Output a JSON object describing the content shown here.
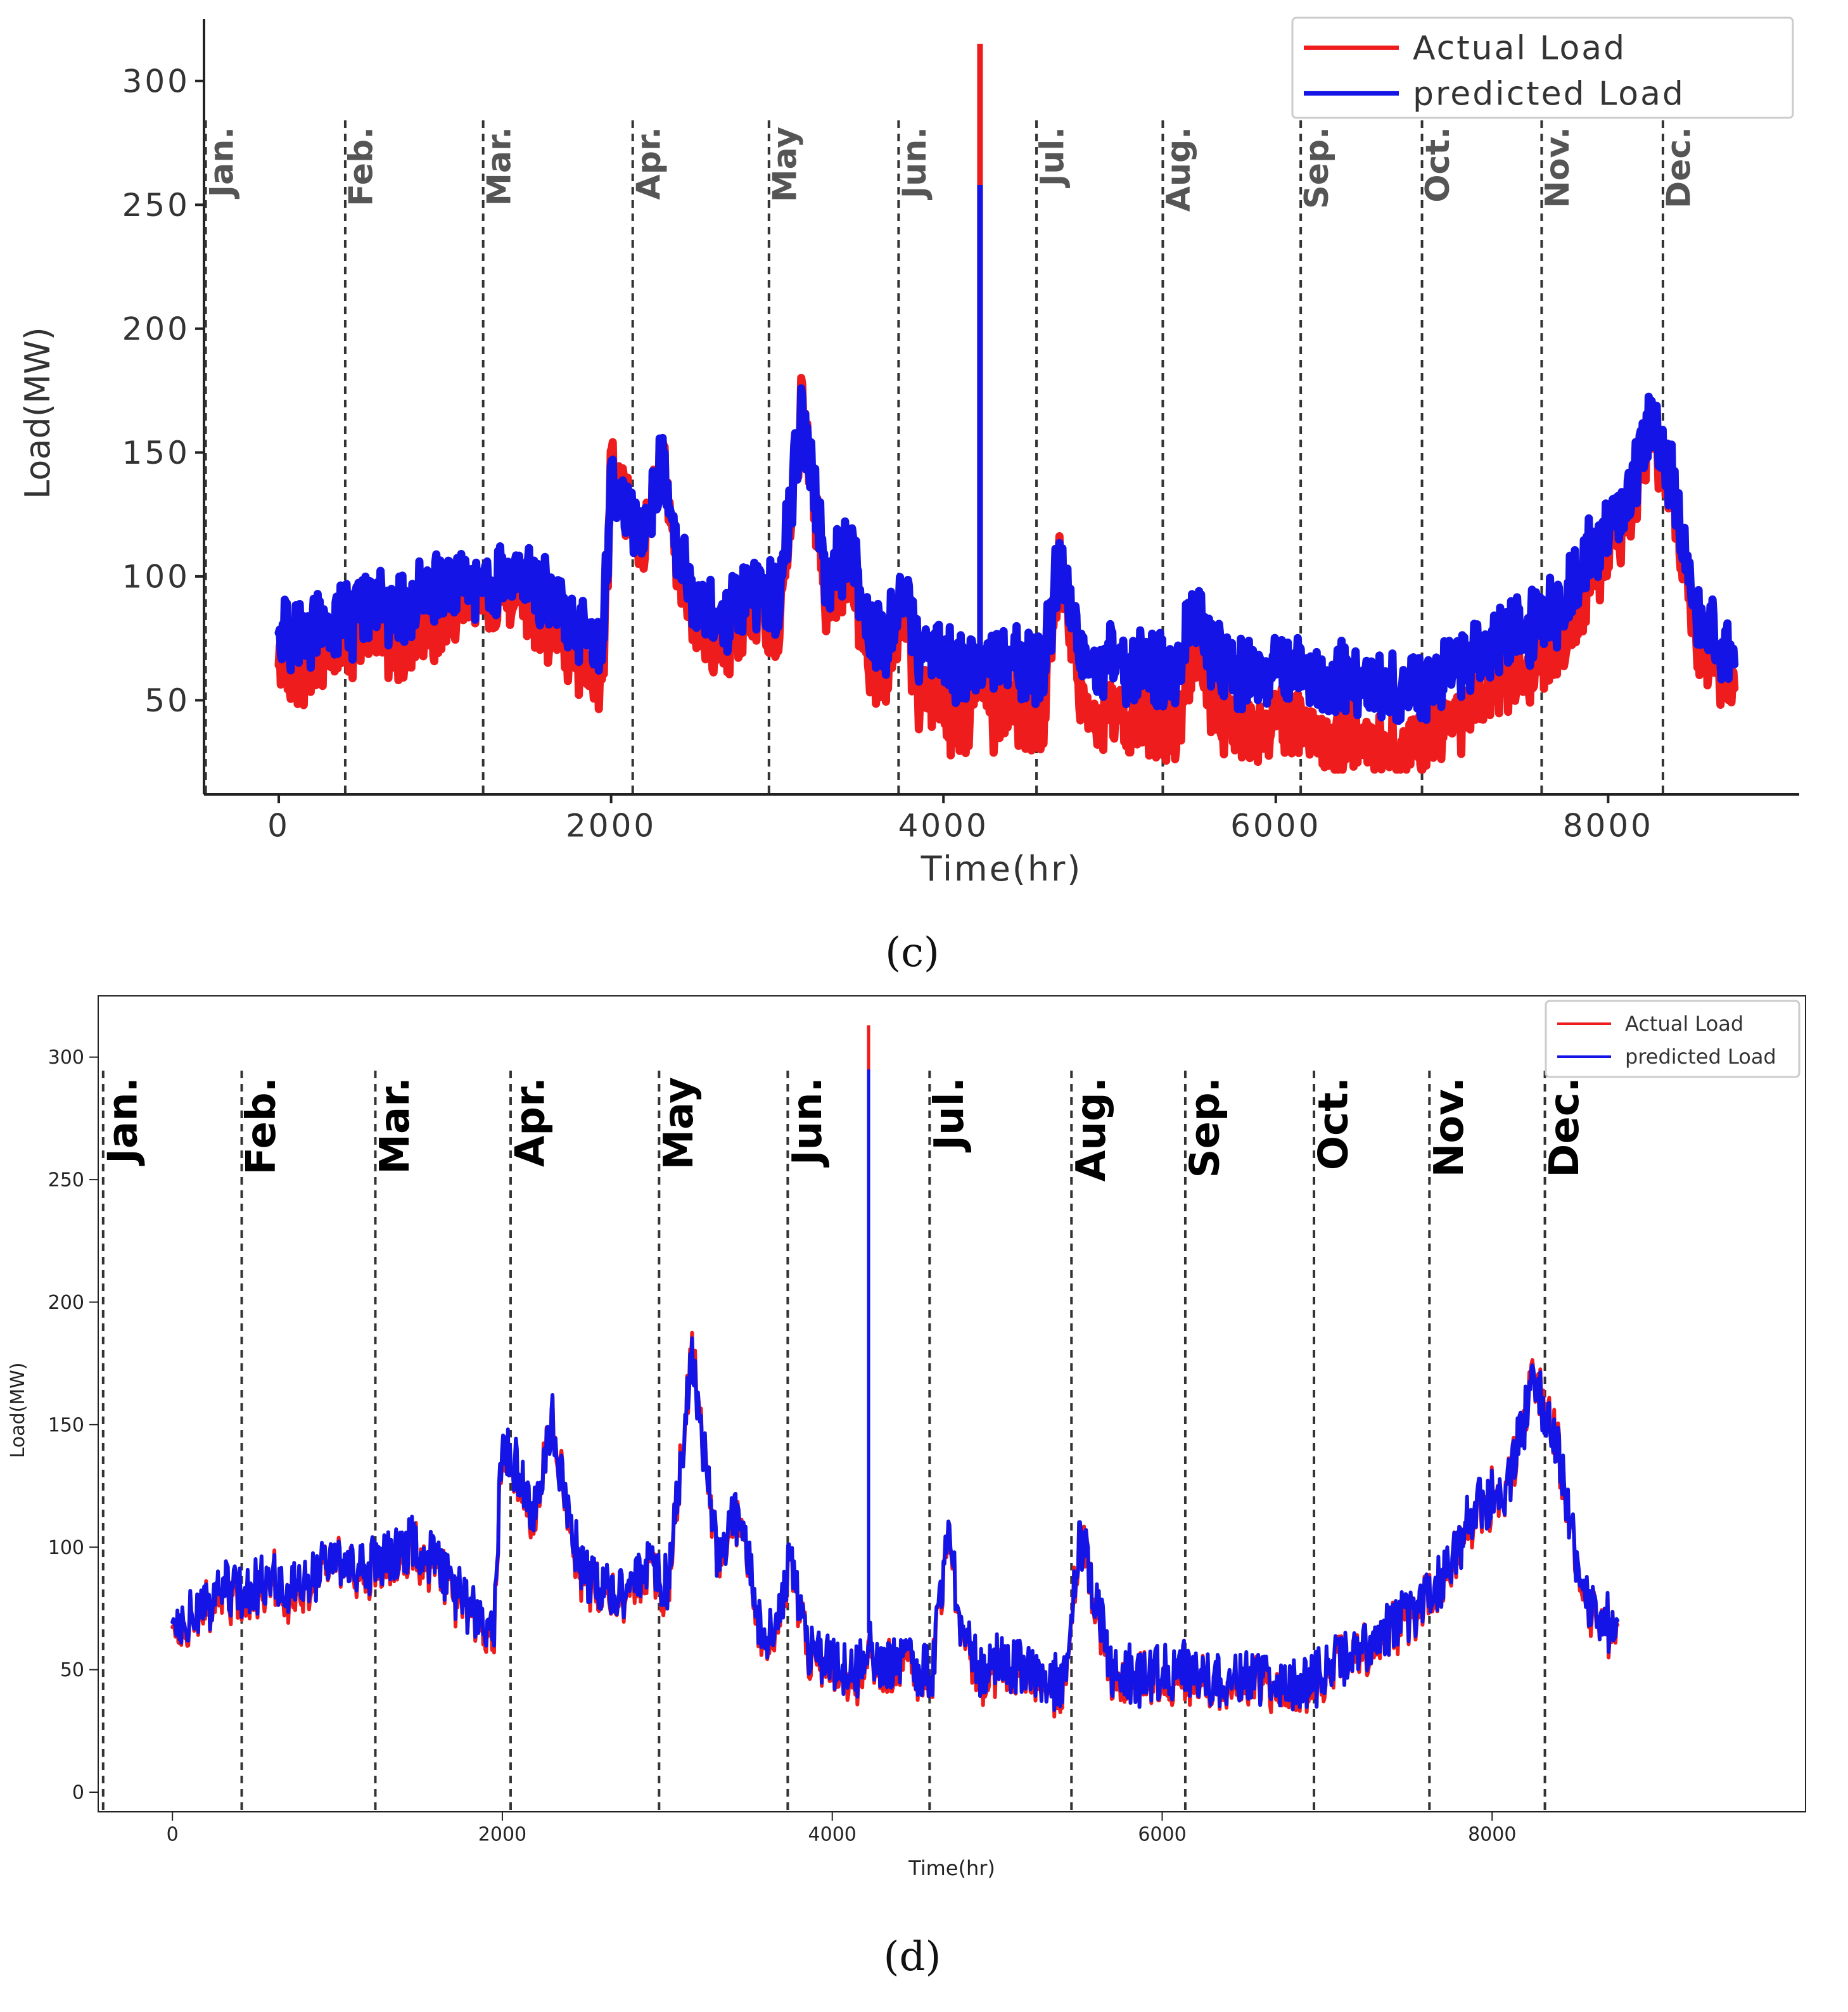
{
  "panels": [
    {
      "caption": "(c)",
      "chart_data": {
        "type": "line",
        "xlabel": "Time(hr)",
        "ylabel": "Load(MW)",
        "xlim": [
          -450,
          9150
        ],
        "ylim": [
          12,
          325
        ],
        "xticks": [
          0,
          2000,
          4000,
          6000,
          8000
        ],
        "yticks": [
          50,
          100,
          150,
          200,
          250,
          300
        ],
        "legend": {
          "position": "top-right",
          "entries": [
            "Actual Load",
            "predicted Load"
          ]
        },
        "months": [
          {
            "label": "Jan.",
            "x": -440
          },
          {
            "label": "Feb.",
            "x": 400
          },
          {
            "label": "Mar.",
            "x": 1230
          },
          {
            "label": "Apr.",
            "x": 2130
          },
          {
            "label": "May",
            "x": 2950
          },
          {
            "label": "Jun.",
            "x": 3730
          },
          {
            "label": "Jul.",
            "x": 4560
          },
          {
            "label": "Aug.",
            "x": 5320
          },
          {
            "label": "Sep.",
            "x": 6150
          },
          {
            "label": "Oct.",
            "x": 6880
          },
          {
            "label": "Nov.",
            "x": 7600
          },
          {
            "label": "Dec.",
            "x": 8330
          }
        ],
        "series": [
          {
            "name": "Actual Load",
            "color": "#ee1c1c",
            "x": [
              0,
              150,
              300,
              450,
              600,
              700,
              800,
              950,
              1100,
              1250,
              1450,
              1600,
              1800,
              1950,
              2000,
              2100,
              2200,
              2300,
              2400,
              2500,
              2700,
              2900,
              3000,
              3150,
              3300,
              3450,
              3550,
              3650,
              3750,
              3850,
              4000,
              4150,
              4220,
              4300,
              4400,
              4500,
              4600,
              4700,
              4800,
              4900,
              5000,
              5200,
              5400,
              5500,
              5700,
              5900,
              6100,
              6300,
              6600,
              6850,
              7000,
              7150,
              7300,
              7500,
              7700,
              7900,
              8100,
              8250,
              8400,
              8550,
              8750
            ],
            "values": [
              65,
              60,
              75,
              70,
              80,
              70,
              75,
              80,
              90,
              88,
              95,
              80,
              65,
              60,
              145,
              130,
              110,
              150,
              105,
              80,
              70,
              85,
              75,
              170,
              90,
              100,
              65,
              60,
              85,
              55,
              45,
              38,
              315,
              42,
              48,
              45,
              40,
              110,
              60,
              40,
              45,
              42,
              38,
              70,
              40,
              38,
              40,
              35,
              35,
              32,
              40,
              45,
              55,
              60,
              70,
              100,
              120,
              160,
              130,
              70,
              60
            ]
          },
          {
            "name": "predicted Load",
            "color": "#1414e6",
            "x": [
              0,
              150,
              300,
              450,
              600,
              700,
              800,
              950,
              1100,
              1250,
              1450,
              1600,
              1800,
              1950,
              2000,
              2100,
              2200,
              2300,
              2400,
              2500,
              2700,
              2900,
              3000,
              3150,
              3300,
              3450,
              3550,
              3650,
              3750,
              3850,
              4000,
              4150,
              4220,
              4300,
              4400,
              4500,
              4600,
              4700,
              4800,
              4900,
              5000,
              5200,
              5400,
              5500,
              5700,
              5900,
              6100,
              6300,
              6600,
              6850,
              7000,
              7150,
              7300,
              7500,
              7700,
              7900,
              8100,
              8250,
              8400,
              8550,
              8750
            ],
            "values": [
              78,
              75,
              85,
              82,
              90,
              85,
              88,
              95,
              98,
              95,
              102,
              92,
              78,
              72,
              140,
              128,
              115,
              145,
              112,
              90,
              82,
              95,
              88,
              165,
              100,
              110,
              78,
              72,
              95,
              70,
              65,
              60,
              258,
              65,
              68,
              66,
              60,
              108,
              72,
              62,
              66,
              64,
              60,
              85,
              62,
              60,
              62,
              60,
              58,
              55,
              62,
              66,
              72,
              78,
              85,
              110,
              125,
              165,
              135,
              80,
              70
            ]
          }
        ]
      }
    },
    {
      "caption": "(d)",
      "chart_data": {
        "type": "line",
        "xlabel": "Time(hr)",
        "ylabel": "Load(MW)",
        "xlim": [
          -450,
          9900
        ],
        "ylim": [
          -8,
          325
        ],
        "xticks": [
          0,
          2000,
          4000,
          6000,
          8000
        ],
        "yticks": [
          0,
          50,
          100,
          150,
          200,
          250,
          300
        ],
        "legend": {
          "position": "top-right",
          "entries": [
            "Actual Load",
            "predicted Load"
          ]
        },
        "months": [
          {
            "label": "Jan.",
            "x": -420
          },
          {
            "label": "Feb.",
            "x": 420
          },
          {
            "label": "Mar.",
            "x": 1230
          },
          {
            "label": "Apr.",
            "x": 2050
          },
          {
            "label": "May",
            "x": 2950
          },
          {
            "label": "Jun.",
            "x": 3730
          },
          {
            "label": "Jul.",
            "x": 4590
          },
          {
            "label": "Aug.",
            "x": 5450
          },
          {
            "label": "Sep.",
            "x": 6140
          },
          {
            "label": "Oct.",
            "x": 6920
          },
          {
            "label": "Nov.",
            "x": 7620
          },
          {
            "label": "Dec.",
            "x": 8320
          }
        ],
        "series": [
          {
            "name": "Actual Load",
            "color": "#ee1c1c",
            "x": [
              0,
              150,
              300,
              450,
              600,
              700,
              800,
              950,
              1100,
              1250,
              1450,
              1600,
              1800,
              1950,
              2000,
              2100,
              2200,
              2300,
              2400,
              2500,
              2700,
              2900,
              3000,
              3150,
              3300,
              3450,
              3550,
              3650,
              3750,
              3850,
              4000,
              4150,
              4220,
              4300,
              4400,
              4500,
              4600,
              4700,
              4800,
              4900,
              5000,
              5200,
              5400,
              5500,
              5700,
              5900,
              6100,
              6300,
              6600,
              6850,
              7000,
              7150,
              7300,
              7500,
              7700,
              7900,
              8100,
              8250,
              8400,
              8550,
              8750
            ],
            "values": [
              68,
              70,
              80,
              78,
              88,
              80,
              82,
              95,
              90,
              92,
              100,
              92,
              72,
              65,
              145,
              128,
              110,
              155,
              108,
              85,
              78,
              92,
              82,
              180,
              95,
              115,
              70,
              60,
              95,
              55,
              50,
              45,
              313,
              48,
              52,
              50,
              45,
              105,
              60,
              45,
              50,
              48,
              42,
              105,
              48,
              45,
              48,
              45,
              45,
              42,
              48,
              55,
              62,
              70,
              85,
              115,
              125,
              170,
              140,
              75,
              65
            ]
          },
          {
            "name": "predicted Load",
            "color": "#1414e6",
            "x": [
              0,
              150,
              300,
              450,
              600,
              700,
              800,
              950,
              1100,
              1250,
              1450,
              1600,
              1800,
              1950,
              2000,
              2100,
              2200,
              2300,
              2400,
              2500,
              2700,
              2900,
              3000,
              3150,
              3300,
              3450,
              3550,
              3650,
              3750,
              3850,
              4000,
              4150,
              4220,
              4300,
              4400,
              4500,
              4600,
              4700,
              4800,
              4900,
              5000,
              5200,
              5400,
              5500,
              5700,
              5900,
              6100,
              6300,
              6600,
              6850,
              7000,
              7150,
              7300,
              7500,
              7700,
              7900,
              8100,
              8250,
              8400,
              8550,
              8750
            ],
            "values": [
              70,
              72,
              82,
              80,
              90,
              82,
              84,
              96,
              92,
              94,
              102,
              94,
              74,
              67,
              146,
              130,
              112,
              154,
              110,
              87,
              80,
              93,
              84,
              178,
              97,
              116,
              72,
              62,
              96,
              58,
              52,
              47,
              295,
              50,
              54,
              52,
              47,
              106,
              62,
              47,
              52,
              50,
              44,
              106,
              50,
              47,
              50,
              47,
              47,
              44,
              50,
              57,
              64,
              72,
              87,
              116,
              126,
              168,
              139,
              77,
              67
            ]
          }
        ]
      }
    }
  ]
}
